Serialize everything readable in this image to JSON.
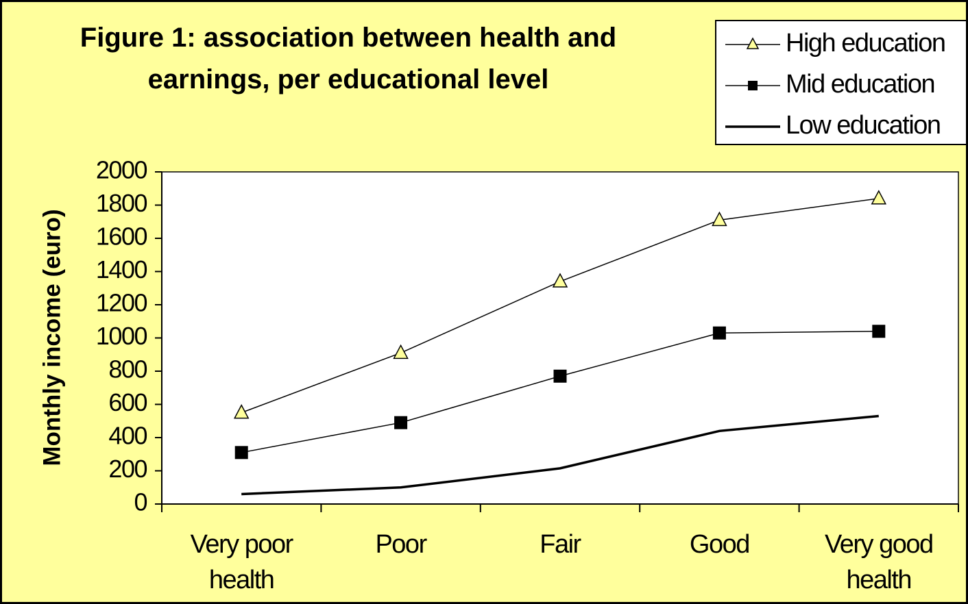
{
  "chart_data": {
    "type": "line",
    "title": "Figure 1: association between health and earnings, per educational level",
    "y_label": "Monthly income (euro)",
    "categories": [
      "Very poor health",
      "Poor",
      "Fair",
      "Good",
      "Very good health"
    ],
    "series": [
      {
        "name": "High education",
        "color": "#ffff9c",
        "marker": "triangle",
        "values": [
          550,
          910,
          1340,
          1710,
          1840
        ]
      },
      {
        "name": "Mid education",
        "color": "#000000",
        "marker": "square",
        "values": [
          310,
          490,
          770,
          1030,
          1040
        ]
      },
      {
        "name": "Low education",
        "color": "#000000",
        "marker": "none",
        "values": [
          60,
          100,
          215,
          440,
          530
        ]
      }
    ],
    "ylim": [
      0,
      2000
    ],
    "yticks": [
      0,
      200,
      400,
      600,
      800,
      1000,
      1200,
      1400,
      1600,
      1800,
      2000
    ],
    "grid": false,
    "legend": "top-right"
  }
}
